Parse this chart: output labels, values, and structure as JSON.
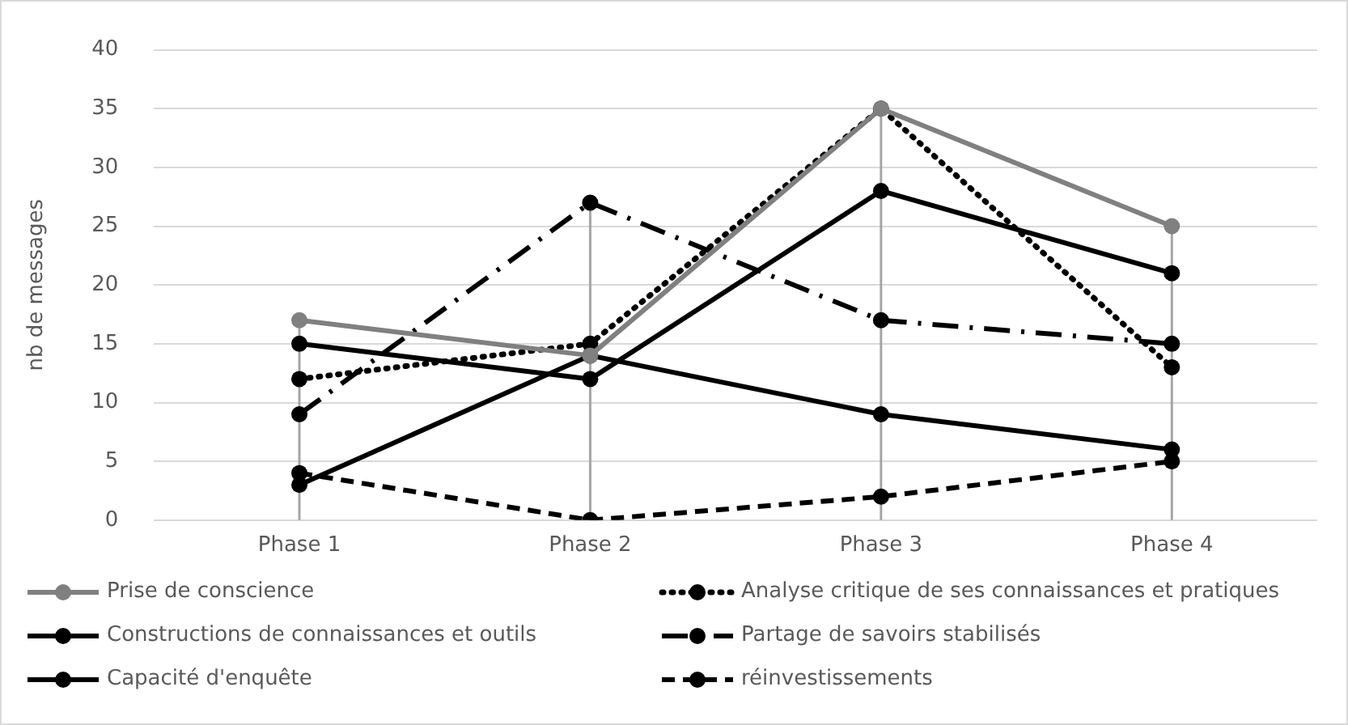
{
  "chart_data": {
    "type": "line",
    "ylabel": "nb de messages",
    "categories": [
      "Phase 1",
      "Phase 2",
      "Phase 3",
      "Phase 4"
    ],
    "series": [
      {
        "name": "Prise de conscience",
        "color": "#808080",
        "line_style": "solid",
        "values": [
          17,
          14,
          35,
          25
        ]
      },
      {
        "name": "Analyse critique de ses connaissances et pratiques",
        "color": "#000000",
        "line_style": "dotted",
        "values": [
          12,
          15,
          35,
          13
        ]
      },
      {
        "name": "Constructions de connaissances et outils",
        "color": "#000000",
        "line_style": "solid",
        "values": [
          3,
          14,
          9,
          6
        ]
      },
      {
        "name": "Partage de savoirs stabilisés",
        "color": "#000000",
        "line_style": "dashdot",
        "values": [
          9,
          27,
          17,
          15
        ]
      },
      {
        "name": "Capacité d'enquête",
        "color": "#000000",
        "line_style": "solid",
        "values": [
          15,
          12,
          28,
          21
        ]
      },
      {
        "name": "réinvestissements",
        "color": "#000000",
        "line_style": "dashed",
        "values": [
          4,
          0,
          2,
          5
        ]
      }
    ],
    "ylim": [
      0,
      40
    ],
    "yticks": [
      0,
      5,
      10,
      15,
      20,
      25,
      30,
      35,
      40
    ],
    "grid": "y",
    "legend": "bottom",
    "marker": "circle",
    "ref_lines": [
      {
        "axis": "x",
        "value": "Phase 1",
        "color": "#a6a6a6"
      },
      {
        "axis": "x",
        "value": "Phase 2",
        "color": "#a6a6a6"
      },
      {
        "axis": "x",
        "value": "Phase 3",
        "color": "#a6a6a6"
      },
      {
        "axis": "x",
        "value": "Phase 4",
        "color": "#a6a6a6"
      }
    ]
  }
}
